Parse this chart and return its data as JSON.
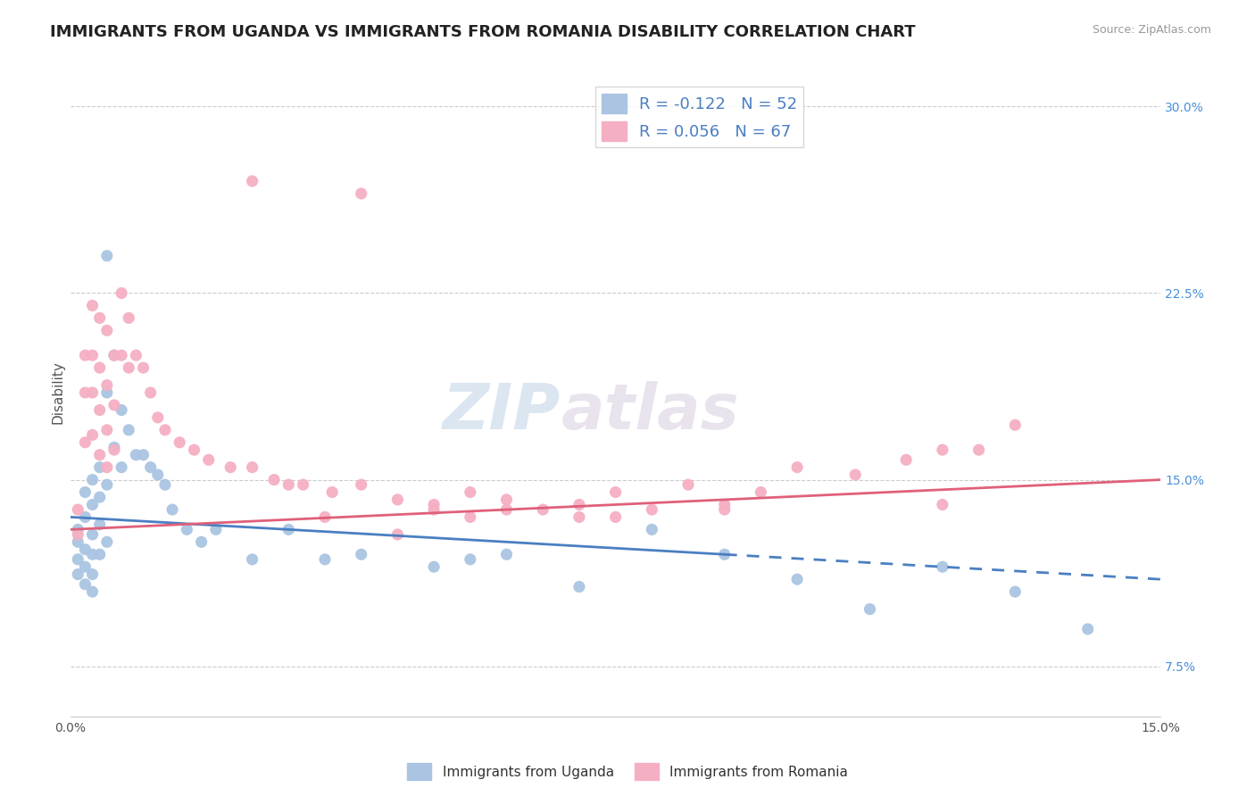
{
  "title": "IMMIGRANTS FROM UGANDA VS IMMIGRANTS FROM ROMANIA DISABILITY CORRELATION CHART",
  "source": "Source: ZipAtlas.com",
  "ylabel": "Disability",
  "xlim": [
    0.0,
    0.15
  ],
  "ylim": [
    0.055,
    0.315
  ],
  "xticks": [
    0.0,
    0.03,
    0.06,
    0.09,
    0.12,
    0.15
  ],
  "xtick_labels": [
    "0.0%",
    "",
    "",
    "",
    "",
    "15.0%"
  ],
  "ytick_labels_right": [
    "7.5%",
    "15.0%",
    "22.5%",
    "30.0%"
  ],
  "yticks_right": [
    0.075,
    0.15,
    0.225,
    0.3
  ],
  "uganda_color": "#aac4e2",
  "romania_color": "#f5afc2",
  "uganda_line_color": "#4a7fc1",
  "romania_line_color": "#e0607a",
  "uganda_R": -0.122,
  "uganda_N": 52,
  "romania_R": 0.056,
  "romania_N": 67,
  "uganda_line_y0": 0.135,
  "uganda_line_y1": 0.11,
  "uganda_line_solid_end": 0.09,
  "romania_line_y0": 0.13,
  "romania_line_y1": 0.15,
  "uganda_scatter_x": [
    0.001,
    0.001,
    0.001,
    0.001,
    0.002,
    0.002,
    0.002,
    0.002,
    0.002,
    0.003,
    0.003,
    0.003,
    0.003,
    0.003,
    0.003,
    0.004,
    0.004,
    0.004,
    0.004,
    0.005,
    0.005,
    0.005,
    0.005,
    0.006,
    0.006,
    0.007,
    0.007,
    0.008,
    0.009,
    0.01,
    0.011,
    0.012,
    0.013,
    0.014,
    0.016,
    0.018,
    0.02,
    0.025,
    0.03,
    0.035,
    0.04,
    0.05,
    0.055,
    0.06,
    0.07,
    0.08,
    0.09,
    0.1,
    0.11,
    0.12,
    0.13,
    0.14
  ],
  "uganda_scatter_y": [
    0.13,
    0.125,
    0.118,
    0.112,
    0.145,
    0.135,
    0.122,
    0.115,
    0.108,
    0.15,
    0.14,
    0.128,
    0.12,
    0.112,
    0.105,
    0.155,
    0.143,
    0.132,
    0.12,
    0.24,
    0.185,
    0.148,
    0.125,
    0.2,
    0.163,
    0.178,
    0.155,
    0.17,
    0.16,
    0.16,
    0.155,
    0.152,
    0.148,
    0.138,
    0.13,
    0.125,
    0.13,
    0.118,
    0.13,
    0.118,
    0.12,
    0.115,
    0.118,
    0.12,
    0.107,
    0.13,
    0.12,
    0.11,
    0.098,
    0.115,
    0.105,
    0.09
  ],
  "romania_scatter_x": [
    0.001,
    0.001,
    0.002,
    0.002,
    0.002,
    0.003,
    0.003,
    0.003,
    0.003,
    0.004,
    0.004,
    0.004,
    0.004,
    0.005,
    0.005,
    0.005,
    0.005,
    0.006,
    0.006,
    0.006,
    0.007,
    0.007,
    0.008,
    0.008,
    0.009,
    0.01,
    0.011,
    0.012,
    0.013,
    0.015,
    0.017,
    0.019,
    0.022,
    0.025,
    0.028,
    0.032,
    0.036,
    0.04,
    0.045,
    0.05,
    0.055,
    0.06,
    0.065,
    0.07,
    0.075,
    0.08,
    0.085,
    0.09,
    0.095,
    0.1,
    0.108,
    0.115,
    0.12,
    0.125,
    0.13,
    0.025,
    0.03,
    0.035,
    0.04,
    0.045,
    0.05,
    0.055,
    0.06,
    0.09,
    0.12,
    0.07,
    0.075
  ],
  "romania_scatter_y": [
    0.138,
    0.128,
    0.2,
    0.185,
    0.165,
    0.22,
    0.2,
    0.185,
    0.168,
    0.215,
    0.195,
    0.178,
    0.16,
    0.21,
    0.188,
    0.17,
    0.155,
    0.2,
    0.18,
    0.162,
    0.225,
    0.2,
    0.215,
    0.195,
    0.2,
    0.195,
    0.185,
    0.175,
    0.17,
    0.165,
    0.162,
    0.158,
    0.155,
    0.155,
    0.15,
    0.148,
    0.145,
    0.148,
    0.142,
    0.14,
    0.145,
    0.142,
    0.138,
    0.14,
    0.145,
    0.138,
    0.148,
    0.14,
    0.145,
    0.155,
    0.152,
    0.158,
    0.162,
    0.162,
    0.172,
    0.27,
    0.148,
    0.135,
    0.265,
    0.128,
    0.138,
    0.135,
    0.138,
    0.138,
    0.14,
    0.135,
    0.135
  ],
  "watermark_zip": "ZIP",
  "watermark_atlas": "atlas",
  "background_color": "#ffffff",
  "grid_color": "#cccccc",
  "title_fontsize": 13,
  "axis_label_fontsize": 11,
  "tick_fontsize": 10,
  "legend_fontsize": 13
}
